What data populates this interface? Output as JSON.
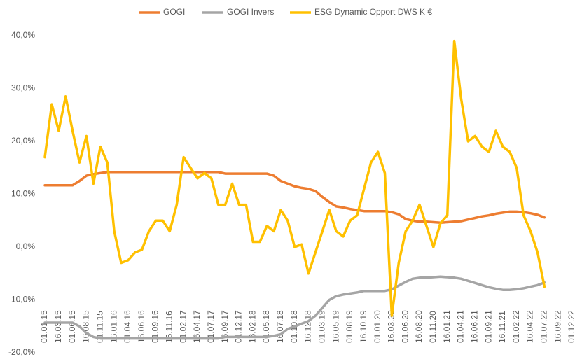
{
  "chart_data": {
    "type": "line",
    "categories": [
      "01.01.15",
      null,
      "16.03.15",
      null,
      "01.06.15",
      null,
      "16.08.15",
      null,
      "01.11.15",
      null,
      "16.01.16",
      null,
      "01.04.16",
      null,
      "16.06.16",
      null,
      "01.09.16",
      null,
      "16.11.16",
      null,
      "01.02.17",
      null,
      "16.04.17",
      null,
      "01.07.17",
      null,
      "16.09.17",
      null,
      "01.12.17",
      null,
      "16.02.18",
      null,
      "01.05.18",
      null,
      "16.07.18",
      null,
      "01.10.18",
      null,
      "16.12.18",
      null,
      "01.03.19",
      null,
      "16.05.19",
      null,
      "01.08.19",
      null,
      "16.10.19",
      null,
      "01.01.20",
      null,
      "16.03.20",
      null,
      "01.06.20",
      null,
      "16.08.20",
      null,
      "01.11.20",
      null,
      "16.01.21",
      null,
      "01.04.21",
      null,
      "16.06.21",
      null,
      "01.09.21",
      null,
      "16.11.21",
      null,
      "01.02.22",
      null,
      "16.04.22",
      null,
      "01.07.22",
      null,
      "16.09.22",
      null,
      "01.12.22"
    ],
    "series": [
      {
        "name": "GOGI",
        "color": "#ed7d31",
        "values": [
          11.7,
          11.7,
          11.7,
          11.7,
          11.7,
          12.5,
          13.5,
          13.8,
          14,
          14.2,
          14.2,
          14.2,
          14.2,
          14.2,
          14.2,
          14.2,
          14.2,
          14.2,
          14.2,
          14.2,
          14.2,
          14.2,
          14.2,
          14.2,
          14.2,
          14.2,
          13.9,
          13.9,
          13.9,
          13.9,
          13.9,
          13.9,
          13.9,
          13.5,
          12.5,
          12,
          11.5,
          11.2,
          11,
          10.6,
          9.5,
          8.5,
          7.7,
          7.5,
          7.2,
          7,
          6.8,
          6.8,
          6.8,
          6.8,
          6.6,
          6.2,
          5.3,
          5,
          4.8,
          4.8,
          4.7,
          4.6,
          4.7,
          4.8,
          4.9,
          5.2,
          5.5,
          5.8,
          6,
          6.3,
          6.5,
          6.7,
          6.7,
          6.6,
          6.4,
          6.1,
          5.6,
          null,
          null,
          null,
          null
        ]
      },
      {
        "name": "GOGI Invers",
        "color": "#a5a5a5",
        "values": [
          -14.3,
          -14.3,
          -14.3,
          -14.3,
          -14.3,
          -15,
          -16.3,
          -17,
          -17.3,
          -17.3,
          -17.3,
          -17.3,
          -17.3,
          -17.3,
          -17.3,
          -17.3,
          -17.3,
          -17.3,
          -17.3,
          -17.3,
          -17.3,
          -17.3,
          -17.3,
          -17.3,
          -17.3,
          -17.3,
          -17,
          -17,
          -17,
          -17,
          -17,
          -17,
          -17,
          -16.8,
          -16.5,
          -15.5,
          -15,
          -14.5,
          -14,
          -13,
          -11.5,
          -10,
          -9.3,
          -9,
          -8.8,
          -8.6,
          -8.3,
          -8.3,
          -8.3,
          -8.3,
          -8,
          -7.3,
          -6.6,
          -6,
          -5.8,
          -5.8,
          -5.7,
          -5.6,
          -5.7,
          -5.8,
          -6,
          -6.4,
          -6.8,
          -7.2,
          -7.6,
          -7.9,
          -8.1,
          -8.1,
          -8,
          -7.8,
          -7.5,
          -7.2,
          -6.7,
          null,
          null,
          null,
          null
        ]
      },
      {
        "name": "ESG Dynamic Opport DWS K €",
        "color": "#ffc000",
        "values": [
          17,
          27,
          22,
          28.5,
          22,
          16,
          21,
          12,
          19,
          16,
          3,
          -3,
          -2.5,
          -1,
          -0.5,
          3,
          5,
          5,
          3,
          8,
          17,
          15,
          13,
          14,
          13,
          8,
          8,
          12,
          8,
          8,
          1,
          1,
          4,
          3,
          7,
          5,
          0,
          0.5,
          -5,
          -1,
          3,
          7,
          3,
          2,
          5,
          6,
          11,
          16,
          18,
          14,
          -13,
          -3,
          3,
          5,
          8,
          4,
          0,
          4.5,
          6,
          39,
          28,
          20,
          21,
          19,
          18,
          22,
          19,
          18,
          15,
          6,
          3,
          -1,
          -7.5,
          null,
          null,
          null,
          null
        ]
      }
    ],
    "ylim": [
      -20,
      40
    ],
    "yticks": [
      {
        "value": -20,
        "label": "-20,0%"
      },
      {
        "value": -10,
        "label": "-10,0%"
      },
      {
        "value": 0,
        "label": "0,0%"
      },
      {
        "value": 10,
        "label": "10,0%"
      },
      {
        "value": 20,
        "label": "20,0%"
      },
      {
        "value": 30,
        "label": "30,0%"
      },
      {
        "value": 40,
        "label": "40,0%"
      }
    ],
    "grid": false
  }
}
